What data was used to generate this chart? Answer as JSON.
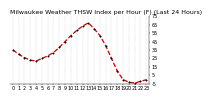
{
  "title": "Milwaukee Weather THSW Index per Hour (F) (Last 24 Hours)",
  "hours": [
    0,
    1,
    2,
    3,
    4,
    5,
    6,
    7,
    8,
    9,
    10,
    11,
    12,
    13,
    14,
    15,
    16,
    17,
    18,
    19,
    20,
    21,
    22,
    23
  ],
  "values": [
    35,
    30,
    26,
    23,
    22,
    25,
    28,
    32,
    38,
    45,
    52,
    58,
    63,
    67,
    60,
    52,
    40,
    25,
    10,
    0,
    -3,
    -4,
    -2,
    0
  ],
  "line_color": "#cc0000",
  "marker_color": "#000000",
  "bg_color": "#ffffff",
  "plot_bg": "#ffffff",
  "grid_color": "#888888",
  "ylim": [
    -5,
    75
  ],
  "ytick_labels": [
    "75",
    "65",
    "55",
    "45",
    "35",
    "25",
    "15",
    "5",
    "-5"
  ],
  "ytick_vals": [
    75,
    65,
    55,
    45,
    35,
    25,
    15,
    5,
    -5
  ],
  "title_fontsize": 4.5,
  "tick_fontsize": 3.5,
  "linewidth": 0.9,
  "markersize": 2.0
}
